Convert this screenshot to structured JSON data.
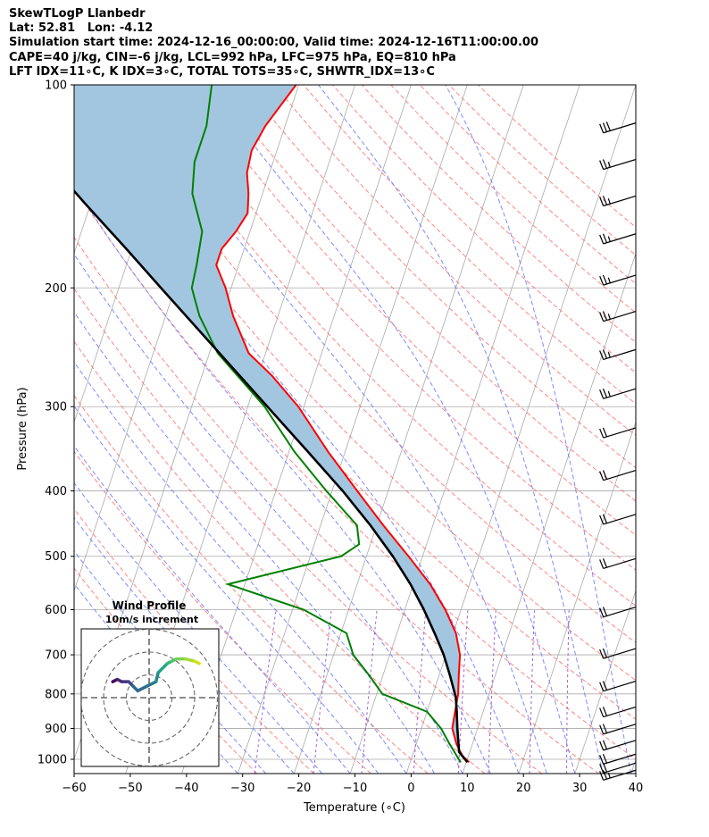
{
  "header": {
    "line1": "SkewTLogP Llanbedr",
    "line2": "Lat: 52.81   Lon: -4.12",
    "line3": "Simulation start time: 2024-12-16_00:00:00, Valid time: 2024-12-16T11:00:00.00",
    "line4": "CAPE=40 j/kg, CIN=-6 j/kg, LCL=992 hPa, LFC=975 hPa, EQ=810 hPa",
    "line5": "LFT IDX=11∘C, K IDX=3∘C, TOTAL TOTS=35∘C, SHWTR_IDX=13∘C"
  },
  "chart_data": {
    "type": "line",
    "xlabel": "Temperature (∘C)",
    "ylabel": "Pressure (hPa)",
    "xlim": [
      -60,
      40
    ],
    "ylim": [
      1050,
      100
    ],
    "y_scale": "log",
    "skew_deg_per_decade": 40,
    "x_ticks": [
      -60,
      -50,
      -40,
      -30,
      -20,
      -10,
      0,
      10,
      20,
      30,
      40
    ],
    "x_tick_labels": [
      "−60",
      "−50",
      "−40",
      "−30",
      "−20",
      "−10",
      "0",
      "10",
      "20",
      "30",
      "40"
    ],
    "y_ticks": [
      1000,
      900,
      800,
      700,
      600,
      500,
      400,
      300,
      200,
      100
    ],
    "y_tick_labels": [
      "1000",
      "900",
      "800",
      "700",
      "600",
      "500",
      "400",
      "300",
      "200",
      "100"
    ],
    "grid": true,
    "colors": {
      "temperature": "#ff0000",
      "dewpoint": "#008000",
      "parcel": "#000000",
      "cape_fill": "#a3c6e0",
      "isotherm": "#aaaaaa",
      "dry_adiabat": "#ff6666",
      "moist_adiabat": "#6677ff",
      "mixing_ratio": "#9955cc",
      "barb": "#000000"
    },
    "series": [
      {
        "key": "temperature",
        "pressure": [
          1010,
          990,
          950,
          900,
          850,
          800,
          750,
          700,
          650,
          600,
          550,
          500,
          450,
          400,
          350,
          300,
          270,
          250,
          220,
          200,
          185,
          175,
          165,
          155,
          145,
          135,
          125,
          115,
          100
        ],
        "values": [
          10.5,
          9.0,
          7.2,
          5.5,
          5.0,
          4.5,
          3.5,
          2.5,
          0.5,
          -2.8,
          -7.0,
          -12.5,
          -18.8,
          -25.5,
          -33.0,
          -41.0,
          -47.5,
          -53.0,
          -58.0,
          -61.0,
          -64.0,
          -64.0,
          -62.5,
          -61.5,
          -62.5,
          -64.0,
          -64.5,
          -63.5,
          -60.5
        ]
      },
      {
        "key": "dewpoint",
        "pressure": [
          1010,
          990,
          950,
          900,
          850,
          800,
          750,
          700,
          650,
          600,
          550,
          500,
          480,
          450,
          400,
          350,
          300,
          250,
          220,
          200,
          185,
          165,
          145,
          130,
          115,
          100
        ],
        "values": [
          9.0,
          8.0,
          6.0,
          3.5,
          0.0,
          -9.0,
          -12.5,
          -16.5,
          -19.0,
          -28.0,
          -43.0,
          -24.5,
          -22.0,
          -23.5,
          -31.0,
          -39.0,
          -47.0,
          -58.5,
          -64.0,
          -67.0,
          -67.5,
          -68.5,
          -72.5,
          -74.0,
          -74.0,
          -75.5
        ]
      },
      {
        "key": "parcel",
        "pressure": [
          1010,
          990,
          975,
          900,
          850,
          810,
          750,
          700,
          650,
          600,
          550,
          500,
          450,
          400,
          350,
          300,
          250,
          200,
          175,
          150,
          125,
          100
        ],
        "values": [
          10.2,
          9.0,
          8.1,
          6.4,
          5.3,
          4.3,
          1.9,
          -0.4,
          -3.3,
          -6.6,
          -10.5,
          -15.3,
          -21.1,
          -28.1,
          -36.6,
          -46.5,
          -58.2,
          -72.5,
          -81.0,
          -91.0,
          -102.5,
          -116.0
        ]
      }
    ],
    "cape_region": {
      "from_hpa": 1010,
      "to_hpa": 100
    },
    "wind_barbs": [
      {
        "p": 1030,
        "flags": 0,
        "full": 2,
        "half": 1
      },
      {
        "p": 1005,
        "flags": 0,
        "full": 2,
        "half": 0
      },
      {
        "p": 975,
        "flags": 0,
        "full": 2,
        "half": 0
      },
      {
        "p": 930,
        "flags": 0,
        "full": 2,
        "half": 0
      },
      {
        "p": 880,
        "flags": 0,
        "full": 2,
        "half": 0
      },
      {
        "p": 830,
        "flags": 0,
        "full": 2,
        "half": 0
      },
      {
        "p": 760,
        "flags": 0,
        "full": 2,
        "half": 0
      },
      {
        "p": 680,
        "flags": 0,
        "full": 2,
        "half": 0
      },
      {
        "p": 590,
        "flags": 0,
        "full": 2,
        "half": 0
      },
      {
        "p": 500,
        "flags": 0,
        "full": 2,
        "half": 0
      },
      {
        "p": 430,
        "flags": 0,
        "full": 2,
        "half": 0
      },
      {
        "p": 370,
        "flags": 0,
        "full": 2,
        "half": 0
      },
      {
        "p": 320,
        "flags": 0,
        "full": 2,
        "half": 0
      },
      {
        "p": 280,
        "flags": 0,
        "full": 2,
        "half": 1
      },
      {
        "p": 245,
        "flags": 0,
        "full": 2,
        "half": 1
      },
      {
        "p": 215,
        "flags": 0,
        "full": 2,
        "half": 1
      },
      {
        "p": 190,
        "flags": 0,
        "full": 2,
        "half": 1
      },
      {
        "p": 165,
        "flags": 0,
        "full": 2,
        "half": 1
      },
      {
        "p": 145,
        "flags": 0,
        "full": 2,
        "half": 1
      },
      {
        "p": 128,
        "flags": 0,
        "full": 2,
        "half": 1
      },
      {
        "p": 113,
        "flags": 0,
        "full": 3,
        "half": 0
      }
    ],
    "inset": {
      "title": "Wind Profile",
      "subtitle": "10m/s increment",
      "hodograph": [
        {
          "u": -16,
          "v": 7,
          "c": "#440154"
        },
        {
          "u": -14,
          "v": 8,
          "c": "#46286d"
        },
        {
          "u": -12,
          "v": 7,
          "c": "#472f7d"
        },
        {
          "u": -9,
          "v": 7,
          "c": "#3e4989"
        },
        {
          "u": -7,
          "v": 5,
          "c": "#31688e"
        },
        {
          "u": -5,
          "v": 3,
          "c": "#31688e"
        },
        {
          "u": -1,
          "v": 5,
          "c": "#2a788e"
        },
        {
          "u": 3,
          "v": 7,
          "c": "#238a8d"
        },
        {
          "u": 4,
          "v": 11,
          "c": "#1f9a8a"
        },
        {
          "u": 5,
          "v": 12,
          "c": "#22a884"
        },
        {
          "u": 8,
          "v": 15,
          "c": "#35b779"
        },
        {
          "u": 10,
          "v": 16,
          "c": "#54c568"
        },
        {
          "u": 12,
          "v": 17,
          "c": "#7ad151"
        },
        {
          "u": 16,
          "v": 17,
          "c": "#a5db36"
        },
        {
          "u": 20,
          "v": 16,
          "c": "#d2e21b"
        },
        {
          "u": 22,
          "v": 15,
          "c": "#fde725"
        }
      ]
    }
  }
}
